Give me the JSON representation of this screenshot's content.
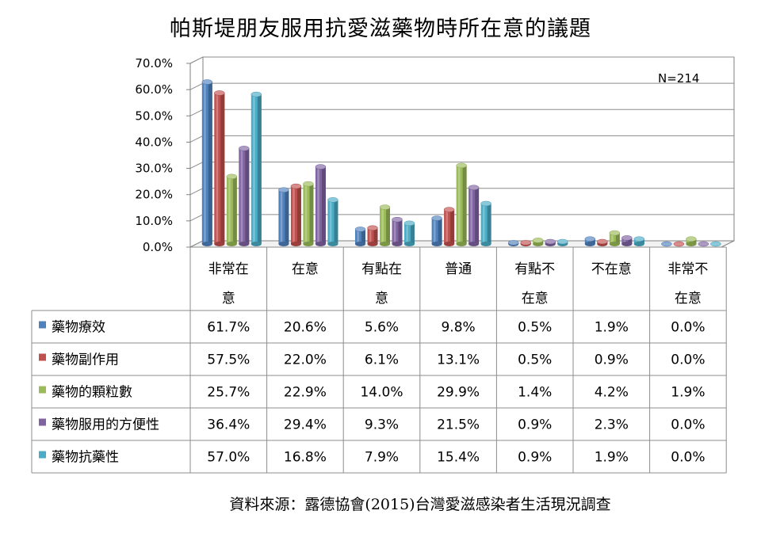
{
  "title": "帕斯堤朋友服用抗愛滋藥物時所在意的議題",
  "note": "N=214",
  "source": "資料來源：露德協會(2015)台灣愛滋感染者生活現況調查",
  "chart_data": {
    "type": "bar",
    "title": "帕斯堤朋友服用抗愛滋藥物時所在意的議題",
    "ylim": [
      0,
      70
    ],
    "yticks": [
      "0.0%",
      "10.0%",
      "20.0%",
      "30.0%",
      "40.0%",
      "50.0%",
      "60.0%",
      "70.0%"
    ],
    "ytick_values": [
      0,
      10,
      20,
      30,
      40,
      50,
      60,
      70
    ],
    "categories": [
      [
        "非常在",
        "意"
      ],
      [
        "在意"
      ],
      [
        "有點在",
        "意"
      ],
      [
        "普通"
      ],
      [
        "有點不",
        "在意"
      ],
      [
        "不在意"
      ],
      [
        "非常不",
        "在意"
      ]
    ],
    "series": [
      {
        "name": "藥物療效",
        "color": "#4F81BD",
        "values": [
          61.7,
          20.6,
          5.6,
          9.8,
          0.5,
          1.9,
          0.0
        ],
        "labels": [
          "61.7%",
          "20.6%",
          "5.6%",
          "9.8%",
          "0.5%",
          "1.9%",
          "0.0%"
        ]
      },
      {
        "name": "藥物副作用",
        "color": "#C0504D",
        "values": [
          57.5,
          22.0,
          6.1,
          13.1,
          0.5,
          0.9,
          0.0
        ],
        "labels": [
          "57.5%",
          "22.0%",
          "6.1%",
          "13.1%",
          "0.5%",
          "0.9%",
          "0.0%"
        ]
      },
      {
        "name": "藥物的顆粒數",
        "color": "#9BBB59",
        "values": [
          25.7,
          22.9,
          14.0,
          29.9,
          1.4,
          4.2,
          1.9
        ],
        "labels": [
          "25.7%",
          "22.9%",
          "14.0%",
          "29.9%",
          "1.4%",
          "4.2%",
          "1.9%"
        ]
      },
      {
        "name": "藥物服用的方便性",
        "color": "#8064A2",
        "values": [
          36.4,
          29.4,
          9.3,
          21.5,
          0.9,
          2.3,
          0.0
        ],
        "labels": [
          "36.4%",
          "29.4%",
          "9.3%",
          "21.5%",
          "0.9%",
          "2.3%",
          "0.0%"
        ]
      },
      {
        "name": "藥物抗藥性",
        "color": "#4BACC6",
        "values": [
          57.0,
          16.8,
          7.9,
          15.4,
          0.9,
          1.9,
          0.0
        ],
        "labels": [
          "57.0%",
          "16.8%",
          "7.9%",
          "15.4%",
          "0.9%",
          "1.9%",
          "0.0%"
        ]
      }
    ],
    "legend": "data-table",
    "grid": true
  }
}
